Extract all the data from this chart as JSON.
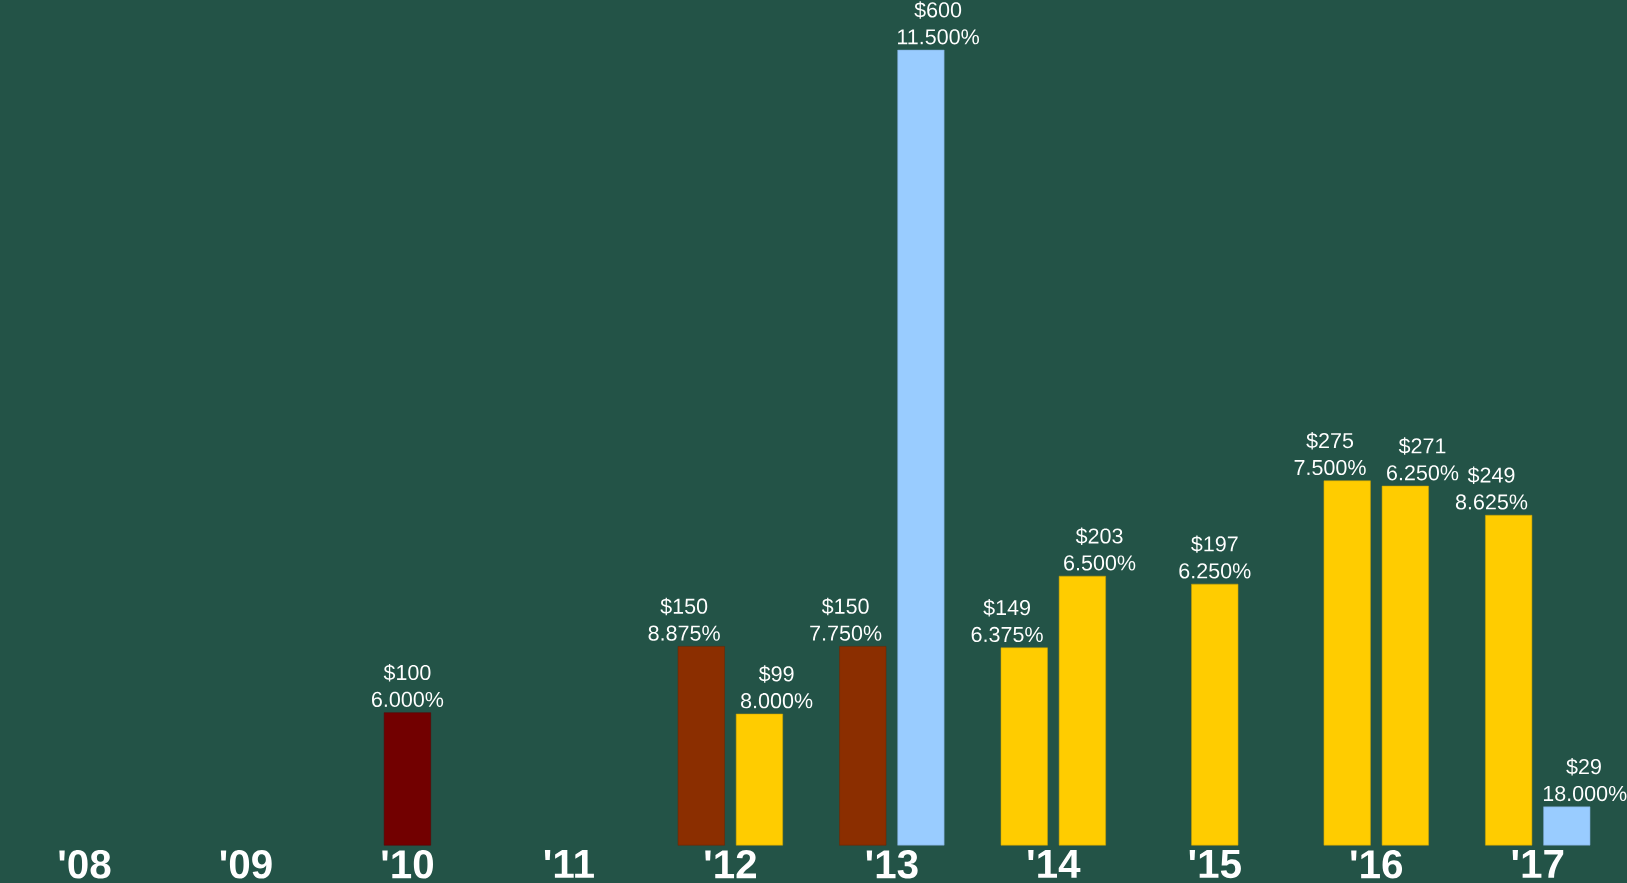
{
  "chart_data": {
    "type": "bar",
    "categories": [
      "'08",
      "'09",
      "'10",
      "'11",
      "'12",
      "'13",
      "'14",
      "'15",
      "'16",
      "'17"
    ],
    "series": [
      {
        "values": [
          null,
          null,
          100,
          null,
          150,
          150,
          149,
          197,
          275,
          249
        ],
        "colors": [
          null,
          null,
          "#720000",
          null,
          "#8b2e00",
          "#8b2e00",
          "#ffcc00",
          "#ffcc00",
          "#ffcc00",
          "#ffcc00"
        ],
        "value_labels": [
          null,
          null,
          "$100 6.000%",
          null,
          "$150 8.875%",
          "$150 7.750%",
          "$149 6.375%",
          "$197 6.250%",
          "$275 7.500%",
          "$249 8.625%"
        ]
      },
      {
        "values": [
          null,
          null,
          null,
          null,
          99,
          600,
          203,
          null,
          271,
          29
        ],
        "colors": [
          null,
          null,
          null,
          null,
          "#ffcc00",
          "#99ccff",
          "#ffcc00",
          null,
          "#ffcc00",
          "#99ccff"
        ],
        "value_labels": [
          null,
          null,
          null,
          null,
          "$99 8.000%",
          "$600 11.500%",
          "$203 6.500%",
          null,
          "$271 6.250%",
          "$29 18.000%"
        ]
      }
    ]
  }
}
